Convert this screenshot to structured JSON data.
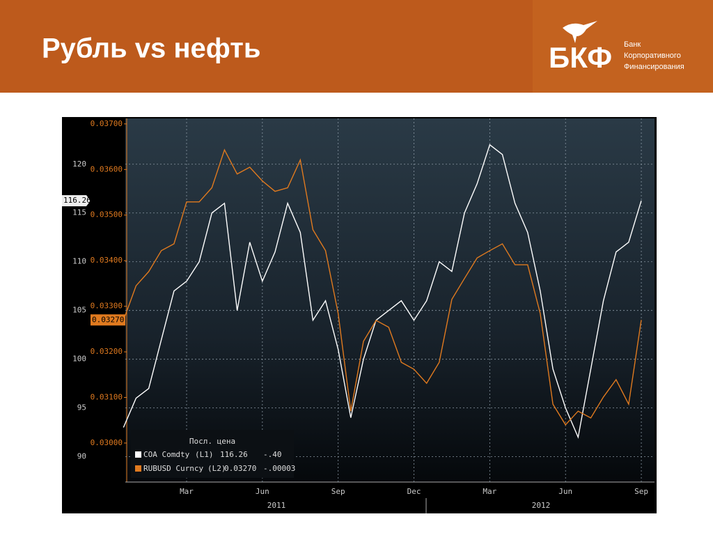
{
  "header": {
    "title": "Рубль vs нефть",
    "logo": "БКФ",
    "logo_lines": [
      "Банк",
      "Корпоративного",
      "Финансирования"
    ]
  },
  "chart_data": {
    "type": "line",
    "categories": [
      null,
      null,
      null,
      null,
      null,
      "Mar",
      null,
      null,
      null,
      null,
      null,
      "Jun",
      null,
      null,
      null,
      null,
      null,
      "Sep",
      null,
      null,
      null,
      null,
      null,
      "Dec",
      null,
      null,
      null,
      null,
      null,
      "Mar",
      null,
      null,
      null,
      null,
      null,
      "Jun",
      null,
      null,
      null,
      null,
      null,
      "Sep"
    ],
    "years": [
      "2011",
      "2012"
    ],
    "ylim": [
      87.4,
      124.7
    ],
    "yticks": [
      90,
      95,
      100,
      105,
      110,
      115,
      120
    ],
    "y2lim": [
      0.029144,
      0.03712
    ],
    "y2ticks": [
      {
        "value": 0.03,
        "label": "0.03000"
      },
      {
        "value": 0.031,
        "label": "0.03100"
      },
      {
        "value": 0.032,
        "label": "0.03200"
      },
      {
        "value": 0.033,
        "label": "0.03300"
      },
      {
        "value": 0.034,
        "label": "0.03400"
      },
      {
        "value": 0.035,
        "label": "0.03500"
      },
      {
        "value": 0.036,
        "label": "0.03600"
      },
      {
        "value": 0.037,
        "label": "0.03700"
      }
    ],
    "grid": true,
    "legend_title": "Посл. цена",
    "series": [
      {
        "name": "COA Comdty",
        "axis_label": "(L1)",
        "last": "116.26",
        "change": "-.40",
        "color": "#ffffff",
        "values": [
          93,
          96,
          97,
          102,
          107,
          108,
          110,
          115,
          116,
          105,
          112,
          108,
          111,
          116,
          113,
          104,
          106,
          101,
          94,
          100,
          104,
          105,
          106,
          104,
          106,
          110,
          109,
          115,
          118,
          122,
          121,
          116,
          113,
          107,
          99,
          95,
          92,
          99,
          106,
          111,
          112,
          116.26
        ]
      },
      {
        "name": "RUBUSD Curncy",
        "axis_label": "(L2)",
        "last": "0.03270",
        "change": "-.00003",
        "color": "#e07a1f",
        "axis": "y2",
        "values": [
          0.03269,
          0.03345,
          0.03376,
          0.03422,
          0.03437,
          0.03529,
          0.03529,
          0.0356,
          0.03643,
          0.0359,
          0.03605,
          0.03575,
          0.03552,
          0.0356,
          0.03621,
          0.03468,
          0.03422,
          0.03284,
          0.0307,
          0.03223,
          0.03269,
          0.03254,
          0.03177,
          0.03162,
          0.03131,
          0.03177,
          0.03315,
          0.03361,
          0.03406,
          0.03422,
          0.03437,
          0.03391,
          0.03391,
          0.03284,
          0.03085,
          0.0304,
          0.0307,
          0.03055,
          0.03101,
          0.03139,
          0.03085,
          0.0327
        ]
      }
    ]
  }
}
